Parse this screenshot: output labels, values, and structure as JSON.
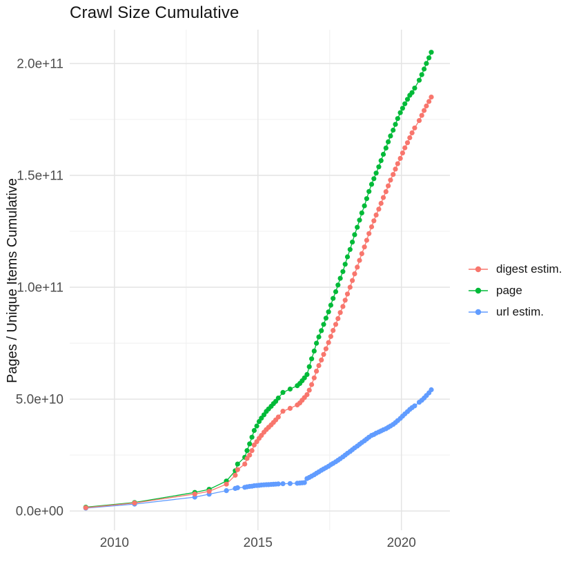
{
  "page": {
    "title": "Crawl Size Cumulative"
  },
  "chart_data": {
    "type": "line",
    "title": "Crawl Size Cumulative",
    "xlabel": "",
    "ylabel": "Pages / Unique Items Cumulative",
    "marker": "point",
    "grid": "major+minor",
    "legend_position": "right",
    "value_unit": "items, values stored in billions (1e9)",
    "x_domain": [
      2008.44,
      2021.69
    ],
    "y_domain_billions": [
      -8.6,
      215.1
    ],
    "x_ticks": {
      "major": [
        2010,
        2015,
        2020
      ],
      "minor": [
        2012.5,
        2017.5
      ],
      "labels": [
        "2010",
        "2015",
        "2020"
      ]
    },
    "y_ticks": {
      "major_billions": [
        0,
        50,
        100,
        150,
        200
      ],
      "minor_billions": [
        25,
        75,
        125,
        175
      ],
      "labels": [
        "0.0e+00",
        "5.0e+10",
        "1.0e+11",
        "1.5e+11",
        "2.0e+11"
      ]
    },
    "x": [
      2009.0,
      2010.7,
      2012.8,
      2013.3,
      2013.9,
      2014.21,
      2014.29,
      2014.54,
      2014.62,
      2014.71,
      2014.79,
      2014.87,
      2014.96,
      2015.04,
      2015.12,
      2015.21,
      2015.29,
      2015.37,
      2015.46,
      2015.54,
      2015.62,
      2015.71,
      2015.87,
      2016.12,
      2016.37,
      2016.46,
      2016.54,
      2016.62,
      2016.71,
      2016.79,
      2016.87,
      2016.96,
      2017.04,
      2017.12,
      2017.21,
      2017.29,
      2017.37,
      2017.46,
      2017.54,
      2017.62,
      2017.71,
      2017.79,
      2017.87,
      2017.96,
      2018.04,
      2018.12,
      2018.21,
      2018.29,
      2018.37,
      2018.46,
      2018.54,
      2018.62,
      2018.71,
      2018.79,
      2018.87,
      2018.96,
      2019.04,
      2019.12,
      2019.21,
      2019.29,
      2019.37,
      2019.46,
      2019.54,
      2019.62,
      2019.71,
      2019.79,
      2019.87,
      2019.96,
      2020.04,
      2020.12,
      2020.21,
      2020.29,
      2020.37,
      2020.46,
      2020.62,
      2020.71,
      2020.79,
      2020.87,
      2020.96,
      2021.04
    ],
    "series": [
      {
        "id": "digest-estim",
        "name": "digest estim.",
        "color": "#F8766D",
        "values_billions": [
          1.5,
          3.6,
          7.6,
          8.8,
          12,
          16,
          18.5,
          21,
          23.5,
          25,
          27,
          29.5,
          31,
          32.5,
          33.8,
          35.2,
          36.4,
          37.4,
          38.5,
          39.6,
          40.7,
          42,
          44.6,
          45.9,
          47.4,
          48.3,
          49.5,
          50.7,
          52,
          54,
          56.5,
          59.5,
          62.5,
          65,
          67.5,
          70,
          72.5,
          75.3,
          78,
          80.7,
          83.4,
          86,
          88.7,
          91.4,
          94.2,
          97,
          100,
          103,
          106,
          109,
          112,
          115,
          118,
          121,
          124,
          127,
          129.7,
          132.3,
          134.9,
          137.5,
          140.1,
          142.7,
          145.3,
          147.9,
          150.4,
          152.8,
          155.2,
          157.6,
          160,
          162.3,
          164.6,
          166.8,
          169,
          171.2,
          174.5,
          176.8,
          179,
          181,
          183,
          185
        ]
      },
      {
        "id": "page",
        "name": "page",
        "color": "#00BA38",
        "values_billions": [
          1.7,
          3.8,
          8.3,
          9.7,
          13.4,
          18,
          21,
          24,
          27,
          30,
          33,
          36,
          38,
          40,
          41.5,
          43,
          44.5,
          45.6,
          46.8,
          48,
          49,
          50.5,
          53,
          54.5,
          56,
          57,
          58.2,
          59.5,
          61,
          64.5,
          68,
          71.5,
          75,
          77.8,
          80.6,
          83.4,
          86.2,
          89,
          92,
          95,
          98,
          101,
          104,
          107,
          110.3,
          113.6,
          116.9,
          120.2,
          123.5,
          126.8,
          130,
          133.2,
          136.4,
          139.6,
          142.8,
          146,
          148.5,
          151,
          153.8,
          156.6,
          159.4,
          162.2,
          165,
          167.6,
          170.2,
          172.8,
          175.4,
          178,
          180,
          182,
          184,
          185.8,
          187,
          189,
          192.5,
          195,
          197.5,
          200,
          202.5,
          205
        ]
      },
      {
        "id": "url-estim",
        "name": "url estim.",
        "color": "#619CFF",
        "values_billions": [
          1.3,
          3.1,
          6.2,
          7.5,
          9.1,
          10.1,
          10.4,
          10.6,
          10.8,
          11,
          11.1,
          11.3,
          11.4,
          11.5,
          11.6,
          11.7,
          11.75,
          11.8,
          11.9,
          11.95,
          12,
          12.1,
          12.2,
          12.3,
          12.4,
          12.5,
          12.6,
          12.7,
          14.5,
          15,
          15.6,
          16.2,
          16.9,
          17.5,
          18.2,
          18.8,
          19.4,
          20,
          20.7,
          21.3,
          22,
          22.7,
          23.4,
          24.2,
          25,
          25.8,
          26.6,
          27.4,
          28.2,
          29,
          29.8,
          30.6,
          31.4,
          32.2,
          33,
          33.8,
          34.2,
          34.8,
          35.3,
          35.8,
          36.3,
          36.8,
          37.4,
          38,
          38.7,
          39.5,
          40.4,
          41.4,
          42.4,
          43.4,
          44.4,
          45.4,
          46.2,
          47,
          48.6,
          49.5,
          50.5,
          51.6,
          52.8,
          54.2
        ]
      }
    ]
  },
  "axes": {
    "y_title": "Pages / Unique Items Cumulative"
  },
  "legend": {
    "items": [
      {
        "label": "digest estim.",
        "color": "#F8766D"
      },
      {
        "label": "page",
        "color": "#00BA38"
      },
      {
        "label": "url estim.",
        "color": "#619CFF"
      }
    ]
  },
  "colors": {
    "background": "#FFFFFF",
    "grid_major": "#E4E4E4",
    "grid_minor": "#F1F1F1",
    "axis_text": "#4D4D4D",
    "text": "#141414",
    "series_red": "#F8766D",
    "series_green": "#00BA38",
    "series_blue": "#619CFF"
  }
}
